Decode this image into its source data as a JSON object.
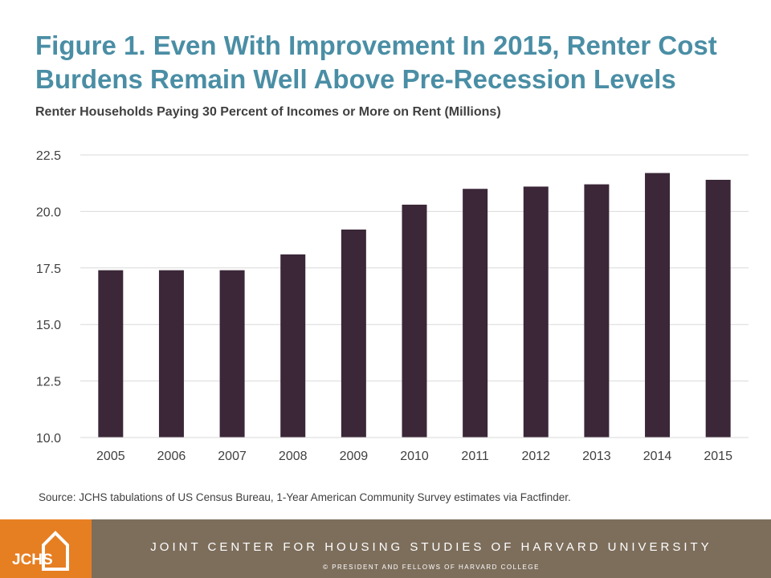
{
  "title": "Figure 1. Even With Improvement In 2015, Renter Cost Burdens Remain Well Above Pre-Recession Levels",
  "colors": {
    "title": "#4a8ea5",
    "bar": "#3b2738",
    "logo_bg": "#e67e22",
    "footer_bg": "#7d6e5c"
  },
  "chart_data": {
    "type": "bar",
    "title": "Renter Households Paying 30 Percent of Incomes or More on Rent (Millions)",
    "xlabel": "",
    "ylabel": "",
    "categories": [
      "2005",
      "2006",
      "2007",
      "2008",
      "2009",
      "2010",
      "2011",
      "2012",
      "2013",
      "2014",
      "2015"
    ],
    "values": [
      17.4,
      17.4,
      17.4,
      18.1,
      19.2,
      20.3,
      21.0,
      21.1,
      21.2,
      21.7,
      21.4
    ],
    "ylim": [
      10.0,
      22.5
    ],
    "yticks": [
      "10.0",
      "12.5",
      "15.0",
      "17.5",
      "20.0",
      "22.5"
    ],
    "grid": true,
    "legend": "none"
  },
  "source": "Source: JCHS tabulations of US Census Bureau, 1-Year American Community Survey estimates via Factfinder.",
  "footer": {
    "logo_text": "JCHS",
    "logo_icon": "house-icon",
    "name": "JOINT CENTER FOR HOUSING STUDIES OF HARVARD UNIVERSITY",
    "copyright": "© PRESIDENT  AND FELLOWS  OF  HARVARD  COLLEGE"
  }
}
